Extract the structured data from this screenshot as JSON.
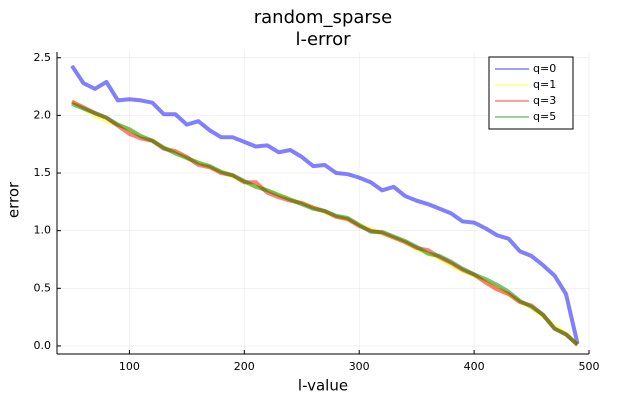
{
  "chart_data": {
    "type": "line",
    "title": "random_sparse",
    "subtitle": "l-error",
    "xlabel": "l-value",
    "ylabel": "error",
    "x": [
      50,
      60,
      70,
      80,
      90,
      100,
      110,
      120,
      130,
      140,
      150,
      160,
      170,
      180,
      190,
      200,
      210,
      220,
      230,
      240,
      250,
      260,
      270,
      280,
      290,
      300,
      310,
      320,
      330,
      340,
      350,
      360,
      370,
      380,
      390,
      400,
      410,
      420,
      430,
      440,
      450,
      460,
      470,
      480,
      490
    ],
    "series": [
      {
        "name": "q=0",
        "color": "#0000ff",
        "values": [
          2.43,
          2.28,
          2.23,
          2.29,
          2.13,
          2.14,
          2.13,
          2.11,
          2.01,
          2.01,
          1.92,
          1.95,
          1.87,
          1.81,
          1.81,
          1.77,
          1.73,
          1.74,
          1.68,
          1.7,
          1.64,
          1.56,
          1.57,
          1.5,
          1.49,
          1.46,
          1.42,
          1.35,
          1.38,
          1.3,
          1.26,
          1.23,
          1.19,
          1.15,
          1.08,
          1.07,
          1.02,
          0.96,
          0.93,
          0.82,
          0.78,
          0.7,
          0.61,
          0.45,
          0.02
        ]
      },
      {
        "name": "q=1",
        "color": "#ffff00",
        "values": [
          2.12,
          2.06,
          2.0,
          1.95,
          1.92,
          1.87,
          1.82,
          1.78,
          1.72,
          1.68,
          1.63,
          1.59,
          1.55,
          1.51,
          1.47,
          1.42,
          1.39,
          1.35,
          1.31,
          1.27,
          1.24,
          1.2,
          1.16,
          1.12,
          1.1,
          1.05,
          1.01,
          0.98,
          0.94,
          0.9,
          0.84,
          0.8,
          0.76,
          0.7,
          0.65,
          0.61,
          0.56,
          0.51,
          0.45,
          0.38,
          0.33,
          0.26,
          0.17,
          0.11,
          0.01
        ]
      },
      {
        "name": "q=3",
        "color": "#ff0000",
        "values": [
          2.12,
          2.07,
          2.02,
          1.98,
          1.91,
          1.84,
          1.8,
          1.78,
          1.71,
          1.69,
          1.64,
          1.57,
          1.55,
          1.5,
          1.48,
          1.42,
          1.42,
          1.33,
          1.29,
          1.26,
          1.24,
          1.2,
          1.17,
          1.12,
          1.1,
          1.04,
          1.0,
          0.98,
          0.94,
          0.9,
          0.85,
          0.83,
          0.77,
          0.72,
          0.66,
          0.62,
          0.55,
          0.49,
          0.45,
          0.38,
          0.35,
          0.27,
          0.15,
          0.1,
          0.01
        ]
      },
      {
        "name": "q=5",
        "color": "#008000",
        "values": [
          2.1,
          2.06,
          2.02,
          1.98,
          1.92,
          1.88,
          1.82,
          1.78,
          1.72,
          1.67,
          1.63,
          1.59,
          1.56,
          1.51,
          1.48,
          1.43,
          1.38,
          1.35,
          1.31,
          1.27,
          1.23,
          1.19,
          1.17,
          1.13,
          1.11,
          1.05,
          0.99,
          0.99,
          0.95,
          0.91,
          0.86,
          0.8,
          0.78,
          0.73,
          0.67,
          0.62,
          0.58,
          0.53,
          0.47,
          0.39,
          0.34,
          0.27,
          0.15,
          0.1,
          0.01
        ]
      }
    ],
    "xlim": [
      37,
      500
    ],
    "ylim": [
      -0.07,
      2.55
    ],
    "xticks": [
      100,
      200,
      300,
      400,
      500
    ],
    "yticks": [
      {
        "value": 0,
        "label": "0.0"
      },
      0.5,
      {
        "value": 1,
        "label": "1.0"
      },
      1.5,
      {
        "value": 2,
        "label": "2.0"
      },
      2.5
    ],
    "grid": true,
    "legend": "top-right"
  }
}
